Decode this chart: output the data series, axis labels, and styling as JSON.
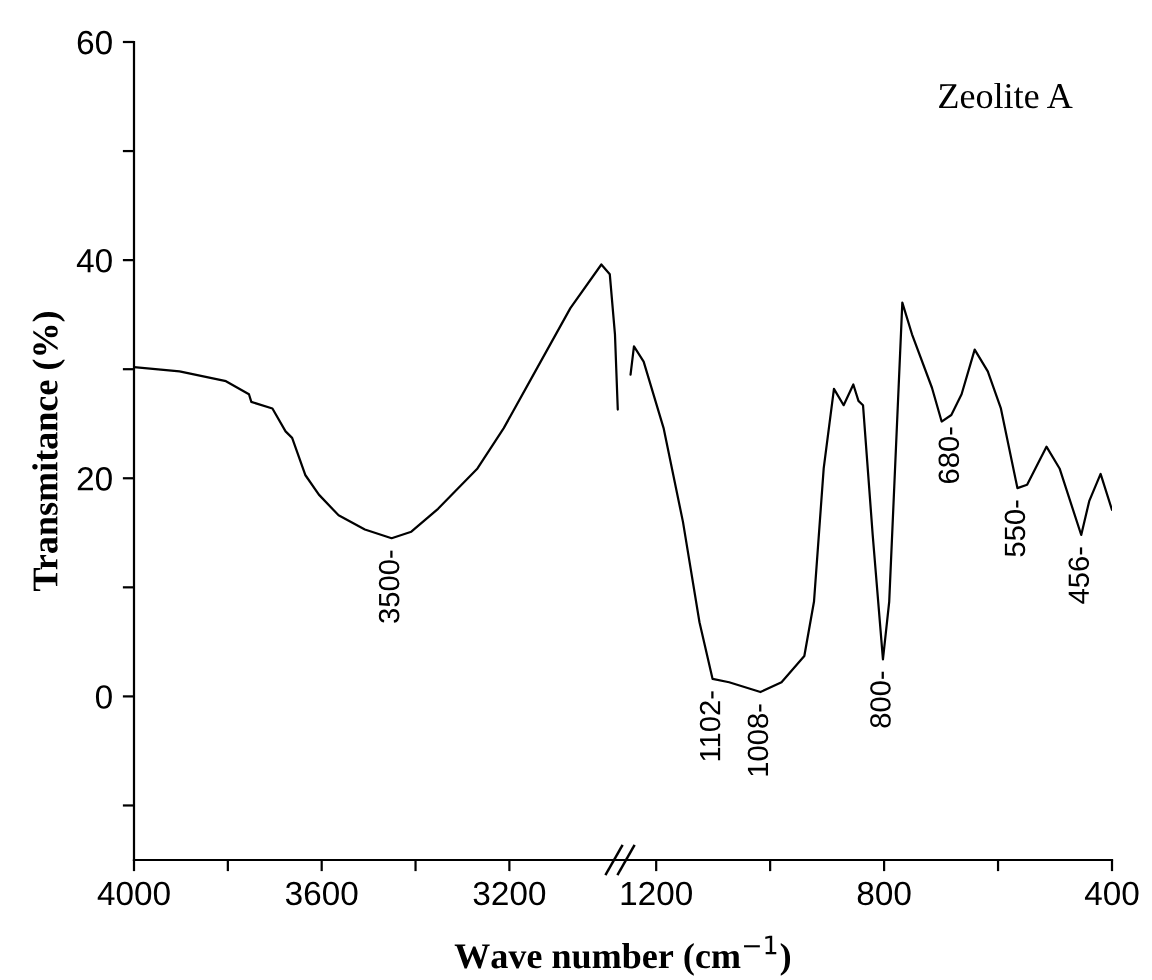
{
  "chart_data": [
    {
      "type": "line",
      "ylabel": "Transmitance (%)",
      "xlabel": "Wave number (cm$^{−1}$)",
      "series": [
        {
          "color": "#000000",
          "x": [
            4000,
            3903,
            3804,
            3755,
            3750,
            3705,
            3677,
            3663,
            3635,
            3606,
            3564,
            3508,
            3451,
            3409,
            3352,
            3268,
            3212,
            3141,
            3070,
            3004,
            2986,
            2975,
            2969
          ],
          "values": [
            30.2,
            29.8,
            28.9,
            27.7,
            27.0,
            26.4,
            24.3,
            23.7,
            20.3,
            18.5,
            16.6,
            15.3,
            14.5,
            15.1,
            17.2,
            20.9,
            24.6,
            30.1,
            35.6,
            39.6,
            38.7,
            33.2,
            26.3
          ]
        }
      ],
      "xlim": [
        4000,
        2960
      ],
      "xticks": [
        4000,
        {
          "value": 3800,
          "label": null
        },
        3600,
        {
          "value": 3400,
          "label": null
        },
        3200
      ],
      "ylim": [
        -15,
        60
      ],
      "yticks": [
        {
          "value": -10,
          "label": null
        },
        0,
        {
          "value": 10,
          "label": null
        },
        20,
        {
          "value": 30,
          "label": null
        },
        40,
        {
          "value": 50,
          "label": null
        },
        60
      ],
      "annotations": [
        {
          "text": "3500-",
          "x": 3451,
          "y": 14.5
        }
      ],
      "marker": "none",
      "line_style": "solid",
      "grid": false,
      "legend": false
    },
    {
      "type": "line",
      "series": [
        {
          "color": "#000000",
          "x": [
            1245,
            1239,
            1222,
            1187,
            1153,
            1124,
            1101,
            1072,
            1017,
            980,
            940,
            923,
            906,
            888,
            871,
            854,
            845,
            837,
            820,
            802,
            791,
            768,
            751,
            716,
            699,
            682,
            664,
            641,
            618,
            595,
            566,
            549,
            515,
            492,
            454,
            440,
            420,
            400
          ],
          "values": [
            29.5,
            32.1,
            30.7,
            24.6,
            16.0,
            6.8,
            1.6,
            1.3,
            0.4,
            1.3,
            3.7,
            8.7,
            20.9,
            28.2,
            26.7,
            28.6,
            27.1,
            26.7,
            14.8,
            3.4,
            8.7,
            36.1,
            33.2,
            28.3,
            25.2,
            25.8,
            27.7,
            31.8,
            29.8,
            26.4,
            19.1,
            19.4,
            22.9,
            20.9,
            14.8,
            17.9,
            20.4,
            17.1
          ]
        }
      ],
      "xlim": [
        1260,
        400
      ],
      "xticks": [
        1200,
        {
          "value": 1000,
          "label": null
        },
        800,
        {
          "value": 600,
          "label": null
        },
        400
      ],
      "ylim": [
        -15,
        60
      ],
      "tick_labels": "x",
      "annotations": [
        "Zeolite A",
        {
          "text": "1102-",
          "x": 1101,
          "y": 1.6
        },
        {
          "text": "1008-",
          "x": 1017,
          "y": 0.4
        },
        {
          "text": "800-",
          "x": 802,
          "y": 3.4
        },
        {
          "text": "680-",
          "x": 682,
          "y": 25.8
        },
        {
          "text": "550-",
          "x": 566,
          "y": 19.1
        },
        {
          "text": "456-",
          "x": 454,
          "y": 14.8
        }
      ],
      "marker": "none",
      "line_style": "solid",
      "grid": false,
      "legend": false
    }
  ]
}
